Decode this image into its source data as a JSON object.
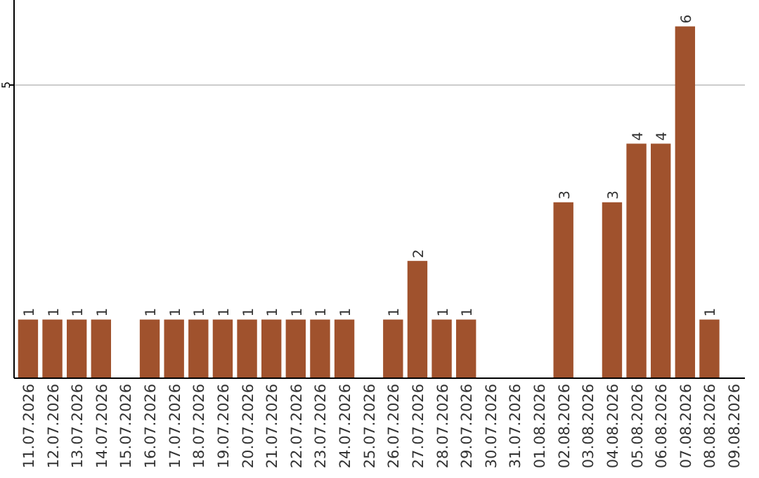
{
  "chart_data": {
    "type": "bar",
    "categories": [
      "11.07.2026",
      "12.07.2026",
      "13.07.2026",
      "14.07.2026",
      "15.07.2026",
      "16.07.2026",
      "17.07.2026",
      "18.07.2026",
      "19.07.2026",
      "20.07.2026",
      "21.07.2026",
      "22.07.2026",
      "23.07.2026",
      "24.07.2026",
      "25.07.2026",
      "26.07.2026",
      "27.07.2026",
      "28.07.2026",
      "29.07.2026",
      "30.07.2026",
      "31.07.2026",
      "01.08.2026",
      "02.08.2026",
      "03.08.2026",
      "04.08.2026",
      "05.08.2026",
      "06.08.2026",
      "07.08.2026",
      "08.08.2026",
      "09.08.2026"
    ],
    "values": [
      1,
      1,
      1,
      1,
      null,
      1,
      1,
      1,
      1,
      1,
      1,
      1,
      1,
      1,
      null,
      1,
      2,
      1,
      1,
      null,
      null,
      null,
      3,
      null,
      3,
      4,
      4,
      6,
      1,
      null
    ],
    "color": "#a0522d",
    "ylim": [
      0,
      6.45
    ],
    "yticks": [
      5
    ],
    "grid": "y",
    "data_labels": true
  }
}
